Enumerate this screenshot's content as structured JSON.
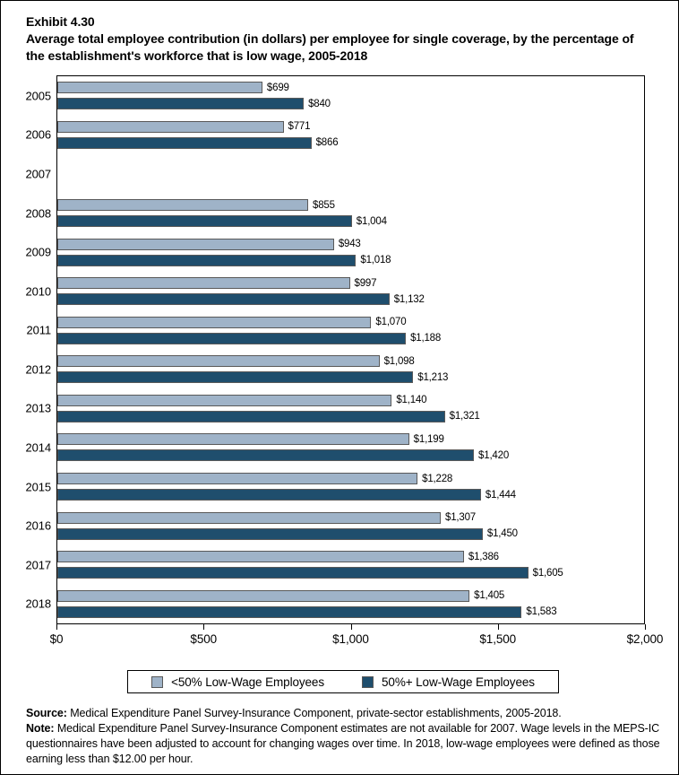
{
  "header": {
    "exhibit": "Exhibit 4.30",
    "title": "Average total employee contribution (in dollars) per employee for single coverage, by the percentage of the establishment's workforce that is low wage, 2005-2018"
  },
  "chart_data": {
    "type": "bar",
    "orientation": "horizontal",
    "title": "Average total employee contribution (in dollars) per employee for single coverage, by the percentage of the establishment's workforce that is low wage, 2005-2018",
    "categories": [
      "2005",
      "2006",
      "2007",
      "2008",
      "2009",
      "2010",
      "2011",
      "2012",
      "2013",
      "2014",
      "2015",
      "2016",
      "2017",
      "2018"
    ],
    "series": [
      {
        "name": "<50% Low-Wage Employees",
        "color": "#9fb3c8",
        "values": [
          699,
          771,
          null,
          855,
          943,
          997,
          1070,
          1098,
          1140,
          1199,
          1228,
          1307,
          1386,
          1405
        ]
      },
      {
        "name": "50%+ Low-Wage Employees",
        "color": "#1f4e6d",
        "values": [
          840,
          866,
          null,
          1004,
          1018,
          1132,
          1188,
          1213,
          1321,
          1420,
          1444,
          1450,
          1605,
          1583
        ]
      }
    ],
    "xlabel": "",
    "ylabel": "",
    "xlim": [
      0,
      2000
    ],
    "x_ticks": [
      {
        "value": 0,
        "label": "$0"
      },
      {
        "value": 500,
        "label": "$500"
      },
      {
        "value": 1000,
        "label": "$1,000"
      },
      {
        "value": 1500,
        "label": "$1,500"
      },
      {
        "value": 2000,
        "label": "$2,000"
      }
    ],
    "value_prefix": "$",
    "grid": false,
    "legend_position": "bottom",
    "missing_note": "2007 data not available",
    "bar_border_color": "#595959"
  },
  "footer": {
    "source_label": "Source:",
    "source_text": " Medical Expenditure Panel Survey-Insurance Component, private-sector establishments, 2005-2018.",
    "note_label": "Note:",
    "note_text": " Medical Expenditure Panel Survey-Insurance Component estimates are not available for 2007. Wage levels in the MEPS-IC questionnaires have been adjusted to account for changing wages over time. In 2018, low-wage employees were defined as those earning less than $12.00 per hour."
  }
}
